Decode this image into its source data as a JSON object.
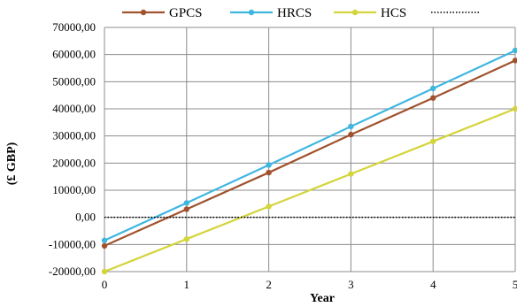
{
  "chart_data": {
    "type": "line",
    "xlabel": "Year",
    "ylabel": "(£ GBP)",
    "x": [
      0,
      1,
      2,
      3,
      4,
      5
    ],
    "xlim": [
      0,
      5
    ],
    "ylim": [
      -20000,
      70000
    ],
    "yticks": [
      -20000,
      -10000,
      0,
      10000,
      20000,
      30000,
      40000,
      50000,
      60000,
      70000
    ],
    "ytick_labels": [
      "-20000,00",
      "-10000,00",
      "0,00",
      "10000,00",
      "20000,00",
      "30000,00",
      "40000,00",
      "50000,00",
      "60000,00",
      "70000,00"
    ],
    "xtick_labels": [
      "0",
      "1",
      "2",
      "3",
      "4",
      "5"
    ],
    "grid": true,
    "legend_position": "top",
    "series": [
      {
        "name": "GPCS",
        "color": "#a0522d",
        "values": [
          -10500,
          3000,
          16500,
          30500,
          44000,
          57800
        ]
      },
      {
        "name": "HRCS",
        "color": "#3fb6e0",
        "values": [
          -8500,
          5300,
          19300,
          33500,
          47500,
          61500
        ]
      },
      {
        "name": "HCS",
        "color": "#d4d43c",
        "values": [
          -20000,
          -8000,
          4000,
          16000,
          28000,
          40000
        ]
      },
      {
        "name": "",
        "color": "#000000",
        "style": "dotted",
        "values": [
          0,
          0,
          0,
          0,
          0,
          0
        ]
      }
    ]
  }
}
